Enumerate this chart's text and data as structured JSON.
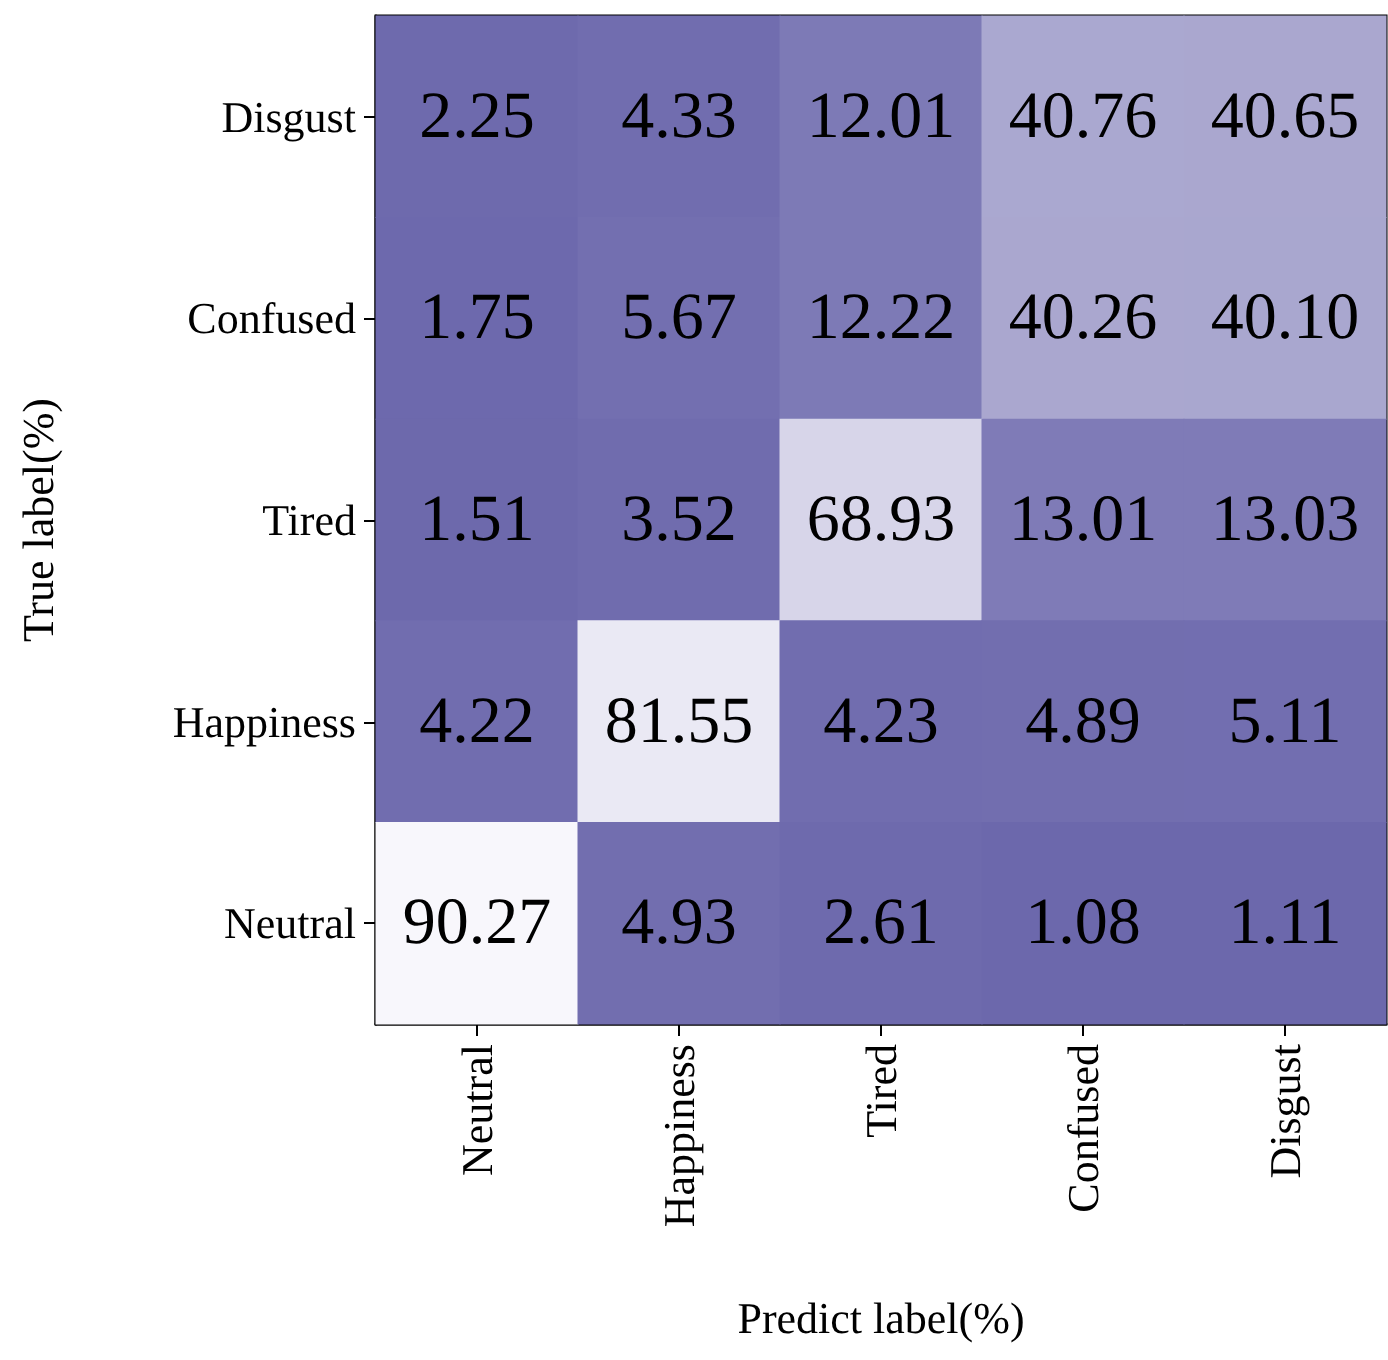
{
  "chart_data": {
    "type": "heatmap",
    "xlabel": "Predict label(%)",
    "ylabel": "True label(%)",
    "categories": [
      "Neutral",
      "Happiness",
      "Tired",
      "Confused",
      "Disgust"
    ],
    "y_categories": [
      "Disgust",
      "Confused",
      "Tired",
      "Happiness",
      "Neutral"
    ],
    "cells": [
      [
        2.25,
        4.33,
        12.01,
        40.76,
        40.65
      ],
      [
        1.75,
        5.67,
        12.22,
        40.26,
        40.1
      ],
      [
        1.51,
        3.52,
        68.93,
        13.01,
        13.03
      ],
      [
        4.22,
        81.55,
        4.23,
        4.89,
        5.11
      ],
      [
        90.27,
        4.93,
        2.61,
        1.08,
        1.11
      ]
    ],
    "cell_labels": [
      [
        "2.25",
        "4.33",
        "12.01",
        "40.76",
        "40.65"
      ],
      [
        "1.75",
        "5.67",
        "12.22",
        "40.26",
        "40.10"
      ],
      [
        "1.51",
        "3.52",
        "68.93",
        "13.01",
        "13.03"
      ],
      [
        "4.22",
        "81.55",
        "4.23",
        "4.89",
        "5.11"
      ],
      [
        "90.27",
        "4.93",
        "2.61",
        "1.08",
        "1.11"
      ]
    ],
    "colors": [
      "#6c68ac",
      "#f8f7fc"
    ]
  }
}
